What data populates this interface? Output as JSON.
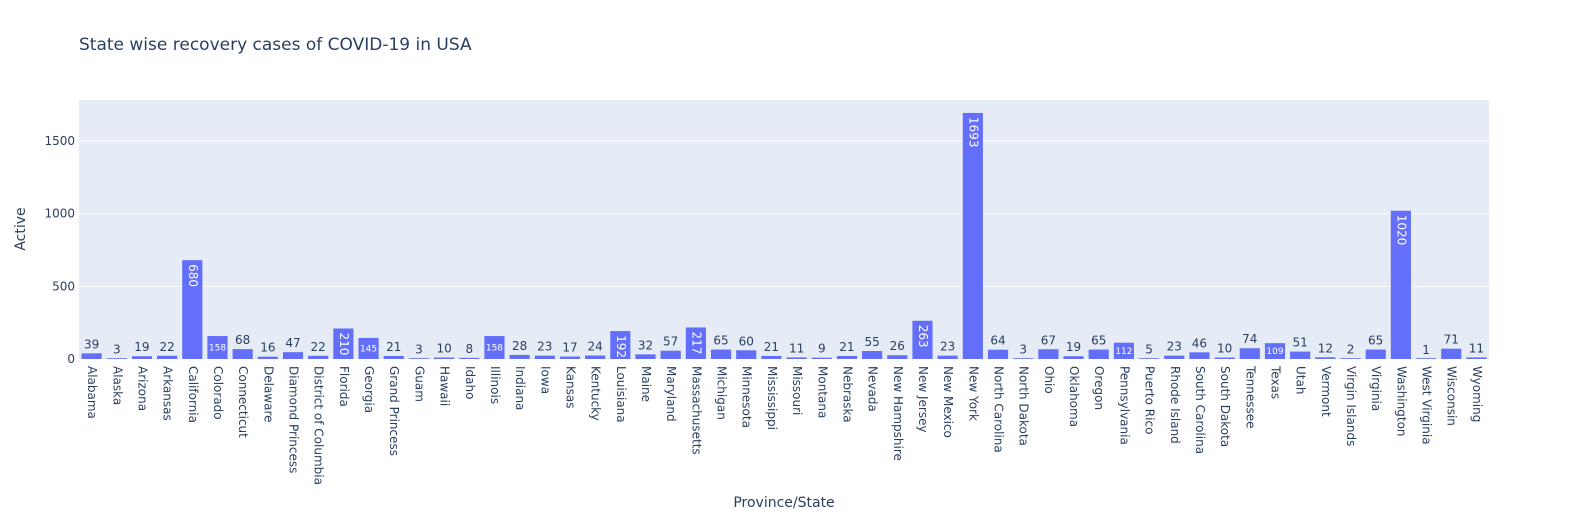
{
  "chart_data": {
    "type": "bar",
    "title": "State wise recovery cases of COVID-19 in USA",
    "xlabel": "Province/State",
    "ylabel": "Active",
    "ylim": [
      0,
      1782
    ],
    "yticks": [
      0,
      500,
      1000,
      1500
    ],
    "grid": true,
    "bar_color": "#636efa",
    "plot_bg": "#e5ecf6",
    "categories": [
      "Alabama",
      "Alaska",
      "Arizona",
      "Arkansas",
      "California",
      "Colorado",
      "Connecticut",
      "Delaware",
      "Diamond Princess",
      "District of Columbia",
      "Florida",
      "Georgia",
      "Grand Princess",
      "Guam",
      "Hawaii",
      "Idaho",
      "Illinois",
      "Indiana",
      "Iowa",
      "Kansas",
      "Kentucky",
      "Louisiana",
      "Maine",
      "Maryland",
      "Massachusetts",
      "Michigan",
      "Minnesota",
      "Mississippi",
      "Missouri",
      "Montana",
      "Nebraska",
      "Nevada",
      "New Hampshire",
      "New Jersey",
      "New Mexico",
      "New York",
      "North Carolina",
      "North Dakota",
      "Ohio",
      "Oklahoma",
      "Oregon",
      "Pennsylvania",
      "Puerto Rico",
      "Rhode Island",
      "South Carolina",
      "South Dakota",
      "Tennessee",
      "Texas",
      "Utah",
      "Vermont",
      "Virgin Islands",
      "Virginia",
      "Washington",
      "West Virginia",
      "Wisconsin",
      "Wyoming"
    ],
    "values": [
      39,
      3,
      19,
      22,
      680,
      158,
      68,
      16,
      47,
      22,
      210,
      145,
      21,
      3,
      10,
      8,
      158,
      28,
      23,
      17,
      24,
      192,
      32,
      57,
      217,
      65,
      60,
      21,
      11,
      9,
      21,
      55,
      26,
      263,
      23,
      1693,
      64,
      3,
      67,
      19,
      65,
      112,
      5,
      23,
      46,
      10,
      74,
      109,
      51,
      12,
      2,
      65,
      1020,
      1,
      71,
      11
    ]
  }
}
